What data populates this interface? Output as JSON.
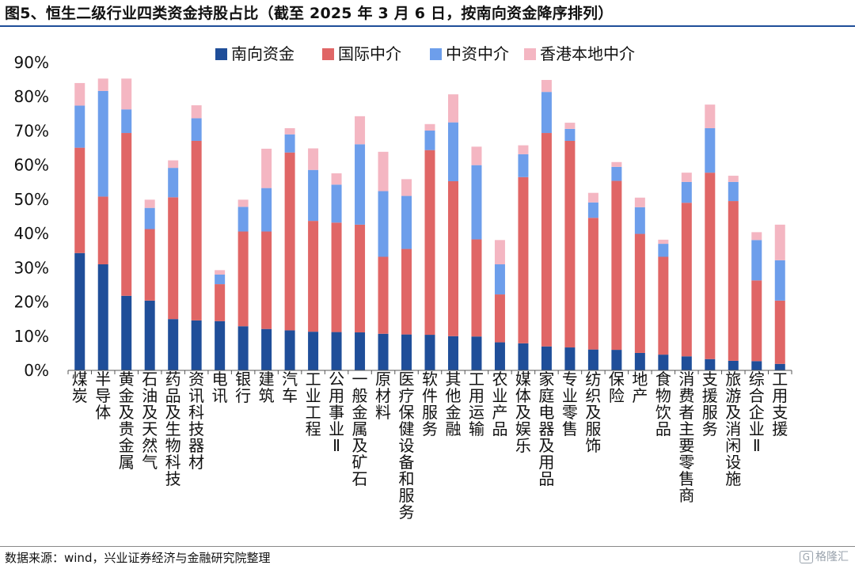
{
  "title": "图5、恒生二级行业四类资金持股占比（截至 2025 年 3 月 6 日，按南向资金降序排列）",
  "source": "数据来源：wind，兴业证券经济与金融研究院整理",
  "watermark": "格隆汇",
  "chart_data": {
    "type": "bar",
    "stacked": true,
    "title": "图5、恒生二级行业四类资金持股占比（截至 2025 年 3 月 6 日，按南向资金降序排列）",
    "xlabel": "",
    "ylabel": "",
    "ylim": [
      0,
      90
    ],
    "y_ticks": [
      "0%",
      "10%",
      "20%",
      "30%",
      "40%",
      "50%",
      "60%",
      "70%",
      "80%",
      "90%"
    ],
    "grid": false,
    "legend_position": "top-center",
    "categories": [
      "煤炭",
      "半导体",
      "黄金及贵金属",
      "石油及天然气",
      "药品及生物科技",
      "资讯科技器材",
      "电讯",
      "银行",
      "建筑",
      "汽车",
      "工业工程",
      "公用事业Ⅱ",
      "一般金属及矿石",
      "原材料",
      "医疗保健设备和服务",
      "软件服务",
      "其他金融",
      "工用运输",
      "农业产品",
      "媒体及娱乐",
      "家庭电器及用品",
      "专业零售",
      "纺织及服饰",
      "保险",
      "地产",
      "食物饮品",
      "消费者主要零售商",
      "支援服务",
      "旅游及消闲设施",
      "综合企业Ⅱ",
      "工用支援"
    ],
    "series": [
      {
        "name": "南向资金",
        "color": "#1f4e99",
        "values": [
          34.3,
          31.0,
          21.8,
          20.4,
          15.0,
          14.6,
          14.4,
          12.9,
          12.1,
          11.7,
          11.3,
          11.2,
          11.1,
          10.7,
          10.5,
          10.4,
          10.0,
          9.9,
          8.2,
          7.9,
          7.0,
          6.7,
          6.1,
          6.0,
          5.1,
          4.6,
          4.1,
          3.3,
          2.8,
          2.7,
          1.9
        ]
      },
      {
        "name": "国际中介",
        "color": "#e06666",
        "values": [
          30.8,
          19.8,
          47.6,
          20.9,
          35.6,
          52.5,
          10.8,
          27.7,
          28.5,
          52.0,
          32.4,
          32.0,
          31.5,
          22.5,
          25.0,
          54.0,
          45.3,
          28.4,
          14.0,
          48.6,
          62.4,
          60.4,
          38.5,
          49.4,
          34.8,
          28.6,
          44.9,
          54.5,
          46.7,
          23.6,
          18.5
        ]
      },
      {
        "name": "中资中介",
        "color": "#6d9eeb",
        "values": [
          12.3,
          30.9,
          6.9,
          6.2,
          8.6,
          6.6,
          2.8,
          7.2,
          12.7,
          5.3,
          14.9,
          11.1,
          23.5,
          19.2,
          15.5,
          5.7,
          17.2,
          21.7,
          8.8,
          6.7,
          12.0,
          3.5,
          4.5,
          4.1,
          7.8,
          3.8,
          6.1,
          13.0,
          5.6,
          11.8,
          11.8
        ]
      },
      {
        "name": "香港本地中介",
        "color": "#f4b6c2",
        "values": [
          6.6,
          3.6,
          9.0,
          2.4,
          2.2,
          3.8,
          1.3,
          2.1,
          11.5,
          1.8,
          6.3,
          3.3,
          8.2,
          11.5,
          4.9,
          1.9,
          8.2,
          5.4,
          7.1,
          2.6,
          3.5,
          1.8,
          2.8,
          1.4,
          2.8,
          1.2,
          2.7,
          6.9,
          1.8,
          2.3,
          10.4
        ]
      }
    ]
  }
}
